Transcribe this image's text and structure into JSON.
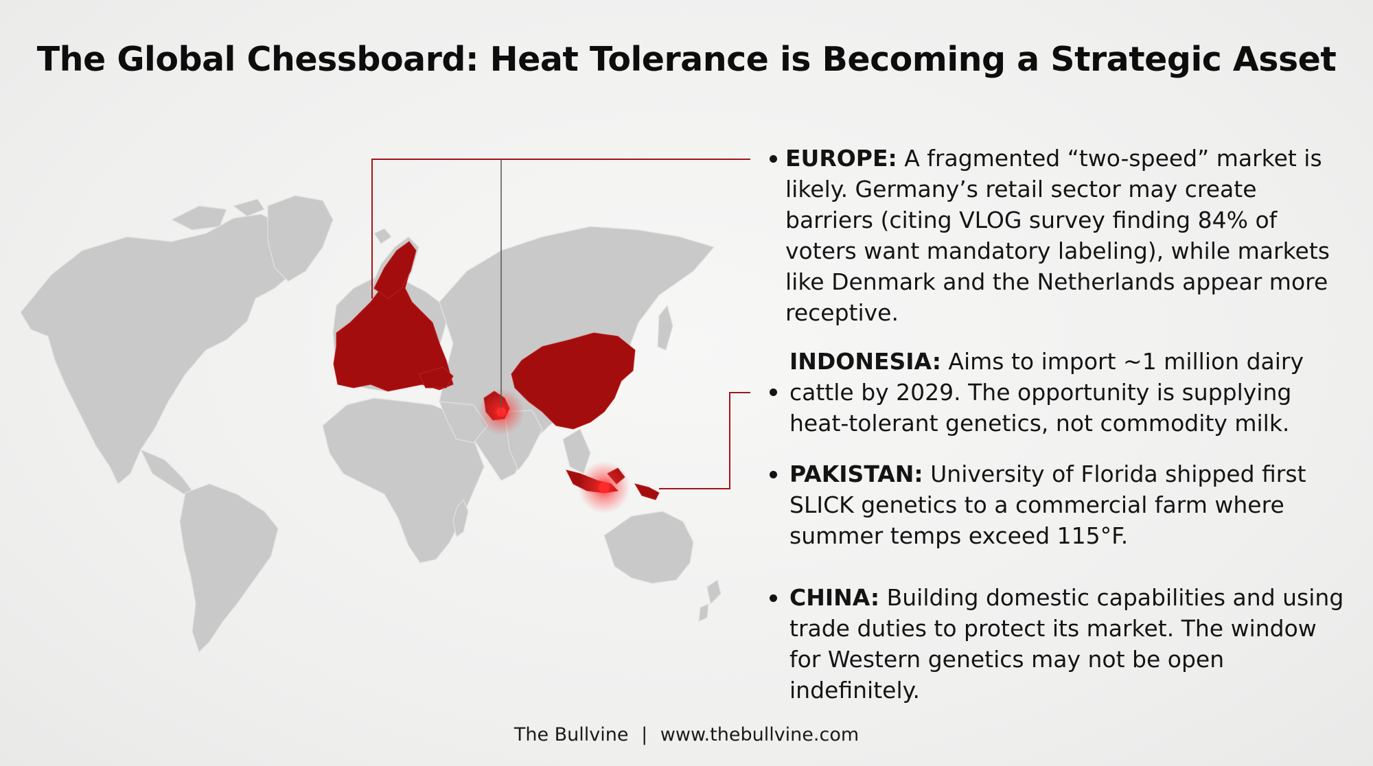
{
  "title": "The Global Chessboard: Heat Tolerance is Becoming a Strategic Asset",
  "colors": {
    "highlight": "#a30d0d",
    "land": "#c9c9c9",
    "glow": "#ff2a2a",
    "leader_line": "#a0151a"
  },
  "map": {
    "highlighted_regions": [
      "Europe",
      "China",
      "Pakistan",
      "Indonesia"
    ]
  },
  "items": [
    {
      "region": "EUROPE:",
      "text": "A fragmented “two-speed” market is likely. Germany’s retail sector may create barriers (citing VLOG survey finding 84% of voters want mandatory labeling), while markets like Denmark and the Netherlands appear more receptive."
    },
    {
      "region": "INDONESIA:",
      "text": "Aims to import ~1 million dairy cattle by 2029. The opportunity is supplying heat-tolerant genetics, not commodity milk."
    },
    {
      "region": "PAKISTAN:",
      "text": "University of Florida shipped first SLICK genetics to a commercial farm where summer temps exceed 115°F."
    },
    {
      "region": "CHINA:",
      "text": "Building domestic capabilities and using trade duties to protect its market. The window for Western genetics may not be open indefinitely."
    }
  ],
  "footer": {
    "brand": "The Bullvine",
    "separator": "|",
    "url": "www.thebullvine.com"
  }
}
